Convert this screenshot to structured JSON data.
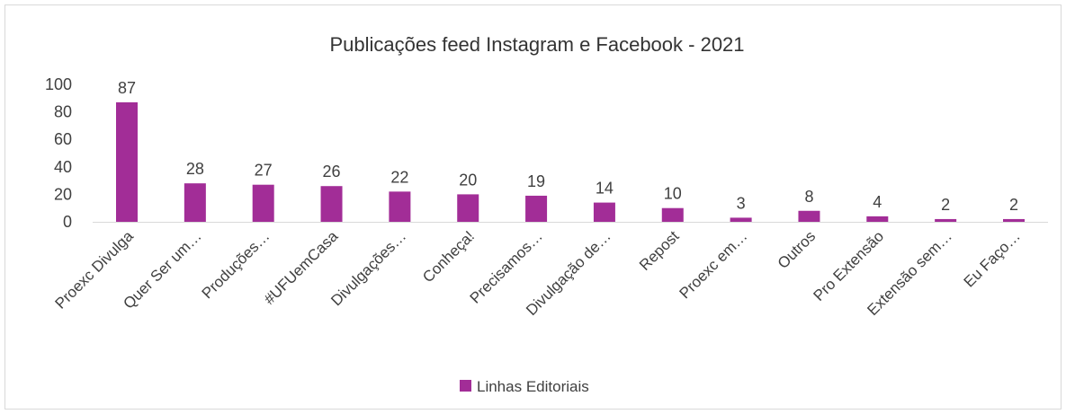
{
  "chart_data": {
    "type": "bar",
    "title": "Publicações feed Instagram e Facebook - 2021",
    "categories": [
      "Proexc Divulga",
      "Quer Ser um…",
      "Produções…",
      "#UFUemCasa",
      "Divulgações…",
      "Conheça!",
      "Precisamos…",
      "Divulgação de…",
      "Repost",
      "Proexc em…",
      "Outros",
      "Pro Extensão",
      "Extensão sem…",
      "Eu Faço…"
    ],
    "series": [
      {
        "name": "Linhas Editoriais",
        "values": [
          87,
          28,
          27,
          26,
          22,
          20,
          19,
          14,
          10,
          3,
          8,
          4,
          2,
          2
        ]
      }
    ],
    "xlabel": "",
    "ylabel": "",
    "ylim": [
      0,
      100
    ],
    "yticks": [
      0,
      20,
      40,
      60,
      80,
      100
    ],
    "grid": false,
    "legend_position": "bottom",
    "data_labels": true,
    "colors": {
      "bar": "#A22D97",
      "axis": "#D9D9D9",
      "text": "#404040",
      "border": "#D9D9D9"
    }
  }
}
